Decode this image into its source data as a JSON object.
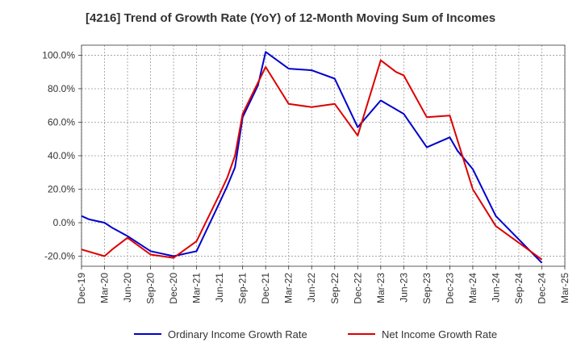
{
  "chart_data": {
    "type": "line",
    "title": "[4216]  Trend of Growth Rate (YoY) of 12-Month Moving Sum of Incomes",
    "xlabel": "",
    "ylabel": "",
    "y_unit": "%",
    "ylim": [
      -26,
      106
    ],
    "y_ticks": [
      100,
      80,
      60,
      40,
      20,
      0,
      -20
    ],
    "y_tick_labels": [
      "100.0%",
      "80.0%",
      "60.0%",
      "40.0%",
      "20.0%",
      "0.0%",
      "-20.0%"
    ],
    "x_tick_labels": [
      "Dec-19",
      "Mar-20",
      "Jun-20",
      "Sep-20",
      "Dec-20",
      "Mar-21",
      "Jun-21",
      "Sep-21",
      "Dec-21",
      "Mar-22",
      "Jun-22",
      "Sep-22",
      "Dec-22",
      "Mar-23",
      "Jun-23",
      "Sep-23",
      "Dec-23",
      "Mar-24",
      "Jun-24",
      "Sep-24",
      "Dec-24",
      "Mar-25"
    ],
    "x": [
      "Dec-19",
      "Mar-20",
      "Jun-20",
      "Sep-20",
      "Dec-20",
      "Mar-21",
      "Jun-21",
      "Sep-21",
      "Dec-21",
      "Mar-22",
      "Jun-22",
      "Sep-22",
      "Dec-22",
      "Mar-23",
      "Jun-23",
      "Sep-23",
      "Dec-23",
      "Mar-24",
      "Jun-24",
      "Sep-24",
      "Dec-24",
      "Mar-25"
    ],
    "grid": true,
    "legend_position": "bottom",
    "series": [
      {
        "name": "Ordinary Income Growth Rate",
        "color": "#0000cc",
        "points": [
          {
            "x": "Dec-19",
            "y": 4
          },
          {
            "x": "Jan-20",
            "y": 2
          },
          {
            "x": "Feb-20",
            "y": 1
          },
          {
            "x": "Mar-20",
            "y": 0
          },
          {
            "x": "Apr-20",
            "y": -3
          },
          {
            "x": "Jun-20",
            "y": -8
          },
          {
            "x": "Sep-20",
            "y": -17
          },
          {
            "x": "Dec-20",
            "y": -20
          },
          {
            "x": "Mar-21",
            "y": -17
          },
          {
            "x": "Jun-21",
            "y": 12
          },
          {
            "x": "Jul-21",
            "y": 22
          },
          {
            "x": "Aug-21",
            "y": 33
          },
          {
            "x": "Sep-21",
            "y": 63
          },
          {
            "x": "Nov-21",
            "y": 82
          },
          {
            "x": "Dec-21",
            "y": 102
          },
          {
            "x": "Mar-22",
            "y": 92
          },
          {
            "x": "Jun-22",
            "y": 91
          },
          {
            "x": "Sep-22",
            "y": 86
          },
          {
            "x": "Dec-22",
            "y": 57
          },
          {
            "x": "Mar-23",
            "y": 73
          },
          {
            "x": "Jun-23",
            "y": 65
          },
          {
            "x": "Sep-23",
            "y": 45
          },
          {
            "x": "Dec-23",
            "y": 51
          },
          {
            "x": "Jan-24",
            "y": 43
          },
          {
            "x": "Mar-24",
            "y": 32
          },
          {
            "x": "Jun-24",
            "y": 4
          },
          {
            "x": "Sep-24",
            "y": -10
          },
          {
            "x": "Dec-24",
            "y": -24
          }
        ]
      },
      {
        "name": "Net Income Growth Rate",
        "color": "#dd0000",
        "points": [
          {
            "x": "Dec-19",
            "y": -16
          },
          {
            "x": "Mar-20",
            "y": -20
          },
          {
            "x": "Apr-20",
            "y": -16
          },
          {
            "x": "Jun-20",
            "y": -9
          },
          {
            "x": "Sep-20",
            "y": -19
          },
          {
            "x": "Dec-20",
            "y": -21
          },
          {
            "x": "Mar-21",
            "y": -11
          },
          {
            "x": "Jun-21",
            "y": 17
          },
          {
            "x": "Jul-21",
            "y": 27
          },
          {
            "x": "Aug-21",
            "y": 40
          },
          {
            "x": "Sep-21",
            "y": 65
          },
          {
            "x": "Dec-21",
            "y": 93
          },
          {
            "x": "Mar-22",
            "y": 71
          },
          {
            "x": "Jun-22",
            "y": 69
          },
          {
            "x": "Sep-22",
            "y": 71
          },
          {
            "x": "Dec-22",
            "y": 52
          },
          {
            "x": "Mar-23",
            "y": 97
          },
          {
            "x": "May-23",
            "y": 90
          },
          {
            "x": "Jun-23",
            "y": 88
          },
          {
            "x": "Sep-23",
            "y": 63
          },
          {
            "x": "Dec-23",
            "y": 64
          },
          {
            "x": "Mar-24",
            "y": 20
          },
          {
            "x": "Jun-24",
            "y": -2
          },
          {
            "x": "Sep-24",
            "y": -12
          },
          {
            "x": "Dec-24",
            "y": -22
          }
        ]
      }
    ]
  }
}
